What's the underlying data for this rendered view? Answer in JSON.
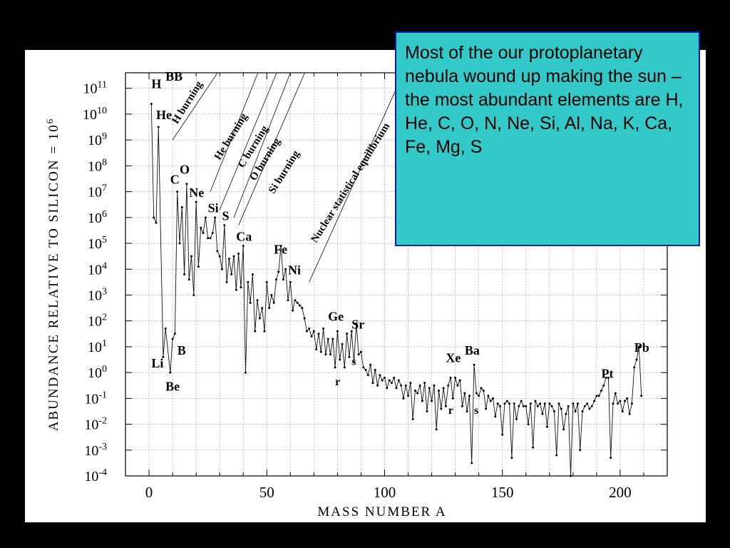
{
  "callout": {
    "text": "Most of the our protoplanetary nebula wound up making the sun – the most abundant elements are H, He, C, O, N, Ne, Si, Al, Na, K, Ca, Fe, Mg, S"
  },
  "chart_data": {
    "type": "line",
    "title": "",
    "xlabel": "MASS NUMBER A",
    "ylabel": "ABUNDANCE RELATIVE TO SILICON = 10^6",
    "xlim": [
      -10,
      220
    ],
    "ylim_log10": [
      -4,
      11.6
    ],
    "yscale": "log",
    "grid": true,
    "x_ticks": [
      "0",
      "50",
      "100",
      "150",
      "200"
    ],
    "y_ticks_exp": [
      "11",
      "10",
      "9",
      "8",
      "7",
      "6",
      "5",
      "4",
      "3",
      "2",
      "1",
      "0",
      "-1",
      "-2",
      "-3",
      "-4"
    ],
    "series": [
      {
        "values_log10_by_mass": [
          [
            1,
            10.4
          ],
          [
            2,
            6.0
          ],
          [
            3,
            5.8
          ],
          [
            4,
            9.5
          ],
          [
            6,
            0.6
          ],
          [
            7,
            1.7
          ],
          [
            9,
            0.0
          ],
          [
            10,
            1.3
          ],
          [
            11,
            1.5
          ],
          [
            12,
            7.0
          ],
          [
            13,
            5.0
          ],
          [
            14,
            6.4
          ],
          [
            15,
            3.8
          ],
          [
            16,
            7.3
          ],
          [
            17,
            3.6
          ],
          [
            18,
            4.5
          ],
          [
            19,
            3.0
          ],
          [
            20,
            6.6
          ],
          [
            21,
            4.1
          ],
          [
            22,
            5.6
          ],
          [
            23,
            5.4
          ],
          [
            24,
            6.0
          ],
          [
            25,
            5.2
          ],
          [
            26,
            5.2
          ],
          [
            27,
            5.4
          ],
          [
            28,
            6.0
          ],
          [
            29,
            4.7
          ],
          [
            30,
            4.5
          ],
          [
            31,
            4.0
          ],
          [
            32,
            5.7
          ],
          [
            33,
            3.5
          ],
          [
            34,
            4.4
          ],
          [
            35,
            3.8
          ],
          [
            36,
            4.5
          ],
          [
            37,
            3.2
          ],
          [
            38,
            4.6
          ],
          [
            39,
            3.3
          ],
          [
            40,
            4.9
          ],
          [
            41,
            0.0
          ],
          [
            42,
            3.5
          ],
          [
            43,
            2.7
          ],
          [
            44,
            3.8
          ],
          [
            45,
            1.6
          ],
          [
            46,
            2.8
          ],
          [
            47,
            2.1
          ],
          [
            48,
            2.5
          ],
          [
            49,
            1.6
          ],
          [
            50,
            3.5
          ],
          [
            51,
            2.5
          ],
          [
            52,
            3.0
          ],
          [
            53,
            2.7
          ],
          [
            54,
            3.6
          ],
          [
            55,
            3.9
          ],
          [
            56,
            4.9
          ],
          [
            57,
            3.6
          ],
          [
            58,
            4.0
          ],
          [
            59,
            2.8
          ],
          [
            60,
            3.5
          ],
          [
            61,
            2.4
          ],
          [
            62,
            2.8
          ],
          [
            63,
            2.7
          ],
          [
            64,
            2.6
          ],
          [
            65,
            2.5
          ],
          [
            66,
            2.1
          ],
          [
            67,
            1.6
          ],
          [
            68,
            1.7
          ],
          [
            69,
            1.4
          ],
          [
            70,
            1.6
          ],
          [
            71,
            0.9
          ],
          [
            72,
            1.5
          ],
          [
            73,
            0.8
          ],
          [
            74,
            1.7
          ],
          [
            75,
            0.7
          ],
          [
            76,
            1.3
          ],
          [
            77,
            0.7
          ],
          [
            78,
            1.3
          ],
          [
            79,
            0.2
          ],
          [
            80,
            1.6
          ],
          [
            81,
            0.5
          ],
          [
            82,
            1.1
          ],
          [
            83,
            0.2
          ],
          [
            84,
            1.5
          ],
          [
            85,
            0.6
          ],
          [
            86,
            1.6
          ],
          [
            87,
            0.4
          ],
          [
            88,
            1.9
          ],
          [
            89,
            0.7
          ],
          [
            90,
            0.8
          ],
          [
            91,
            0.2
          ],
          [
            92,
            0.1
          ],
          [
            93,
            -0.1
          ],
          [
            94,
            0.3
          ],
          [
            95,
            -0.4
          ],
          [
            96,
            0.1
          ],
          [
            97,
            -0.5
          ],
          [
            98,
            -0.1
          ],
          [
            99,
            -0.3
          ],
          [
            100,
            -0.2
          ],
          [
            101,
            -0.6
          ],
          [
            102,
            -0.3
          ],
          [
            103,
            -0.4
          ],
          [
            104,
            -0.2
          ],
          [
            105,
            -0.6
          ],
          [
            106,
            -0.3
          ],
          [
            107,
            -0.5
          ],
          [
            108,
            -1.0
          ],
          [
            109,
            -0.5
          ],
          [
            110,
            -0.9
          ],
          [
            111,
            -0.4
          ],
          [
            112,
            -1.8
          ],
          [
            113,
            -0.7
          ],
          [
            114,
            -0.8
          ],
          [
            115,
            -0.5
          ],
          [
            116,
            -1.1
          ],
          [
            117,
            -0.4
          ],
          [
            118,
            -1.5
          ],
          [
            119,
            -0.6
          ],
          [
            120,
            -1.1
          ],
          [
            121,
            -0.5
          ],
          [
            122,
            -2.2
          ],
          [
            123,
            -0.7
          ],
          [
            124,
            -1.4
          ],
          [
            125,
            -0.6
          ],
          [
            126,
            -1.3
          ],
          [
            127,
            -0.5
          ],
          [
            128,
            -0.2
          ],
          [
            129,
            -1.0
          ],
          [
            130,
            -0.2
          ],
          [
            131,
            -0.5
          ],
          [
            132,
            -0.3
          ],
          [
            133,
            -1.3
          ],
          [
            134,
            -0.8
          ],
          [
            135,
            -1.5
          ],
          [
            136,
            -0.9
          ],
          [
            137,
            -3.5
          ],
          [
            138,
            0.3
          ],
          [
            139,
            -0.8
          ],
          [
            140,
            -0.9
          ],
          [
            141,
            -0.6
          ],
          [
            142,
            -0.7
          ],
          [
            143,
            -1.4
          ],
          [
            144,
            -0.9
          ],
          [
            145,
            -1.1
          ],
          [
            146,
            -1.0
          ],
          [
            147,
            -1.7
          ],
          [
            148,
            -1.2
          ],
          [
            149,
            -1.3
          ],
          [
            150,
            -2.4
          ],
          [
            151,
            -1.2
          ],
          [
            152,
            -1.1
          ],
          [
            153,
            -1.2
          ],
          [
            154,
            -3.3
          ],
          [
            155,
            -1.2
          ],
          [
            156,
            -1.8
          ],
          [
            157,
            -1.3
          ],
          [
            158,
            -1.1
          ],
          [
            159,
            -1.3
          ],
          [
            160,
            -1.3
          ],
          [
            161,
            -2.0
          ],
          [
            162,
            -1.2
          ],
          [
            163,
            -2.9
          ],
          [
            164,
            -1.1
          ],
          [
            165,
            -1.3
          ],
          [
            166,
            -1.2
          ],
          [
            167,
            -1.6
          ],
          [
            168,
            -1.2
          ],
          [
            169,
            -2.1
          ],
          [
            170,
            -1.2
          ],
          [
            171,
            -1.3
          ],
          [
            172,
            -1.5
          ],
          [
            173,
            -3.2
          ],
          [
            174,
            -1.2
          ],
          [
            175,
            -1.4
          ],
          [
            176,
            -2.2
          ],
          [
            177,
            -1.6
          ],
          [
            178,
            -1.3
          ],
          [
            179,
            -4.0
          ],
          [
            180,
            -1.2
          ],
          [
            181,
            -1.5
          ],
          [
            182,
            -1.2
          ],
          [
            183,
            -3.0
          ],
          [
            184,
            -1.5
          ],
          [
            185,
            -1.3
          ],
          [
            186,
            -1.2
          ],
          [
            187,
            -1.4
          ],
          [
            188,
            -1.3
          ],
          [
            189,
            -1.1
          ],
          [
            190,
            -0.9
          ],
          [
            191,
            -0.9
          ],
          [
            192,
            -0.7
          ],
          [
            193,
            -0.5
          ],
          [
            194,
            -0.2
          ],
          [
            195,
            -0.2
          ],
          [
            196,
            -3.3
          ],
          [
            197,
            -1.2
          ],
          [
            198,
            -0.8
          ],
          [
            199,
            -1.2
          ],
          [
            200,
            -1.1
          ],
          [
            201,
            -1.5
          ],
          [
            202,
            -1.1
          ],
          [
            203,
            -1.0
          ],
          [
            204,
            -1.6
          ],
          [
            205,
            -1.2
          ],
          [
            206,
            0.2
          ],
          [
            207,
            0.5
          ],
          [
            208,
            1.0
          ],
          [
            209,
            -0.9
          ]
        ]
      }
    ],
    "element_labels": [
      {
        "text": "H",
        "mass": 1,
        "log10": 11.0
      },
      {
        "text": "BB",
        "mass": 7,
        "log10": 11.3
      },
      {
        "text": "He",
        "mass": 3,
        "log10": 9.8
      },
      {
        "text": "Li",
        "mass": 1,
        "log10": 0.2
      },
      {
        "text": "B",
        "mass": 12,
        "log10": 0.7
      },
      {
        "text": "Be",
        "mass": 7,
        "log10": -0.7
      },
      {
        "text": "C",
        "mass": 9,
        "log10": 7.3
      },
      {
        "text": "O",
        "mass": 13,
        "log10": 7.7
      },
      {
        "text": "Ne",
        "mass": 17,
        "log10": 6.8
      },
      {
        "text": "Si",
        "mass": 25,
        "log10": 6.2
      },
      {
        "text": "S",
        "mass": 31,
        "log10": 5.9
      },
      {
        "text": "Ca",
        "mass": 37,
        "log10": 5.1
      },
      {
        "text": "Fe",
        "mass": 53,
        "log10": 4.6
      },
      {
        "text": "Ni",
        "mass": 59,
        "log10": 3.8
      },
      {
        "text": "Ge",
        "mass": 76,
        "log10": 2.0
      },
      {
        "text": "Sr",
        "mass": 86,
        "log10": 1.7
      },
      {
        "text": "r",
        "mass": 79,
        "log10": -0.5
      },
      {
        "text": "s",
        "mass": 86,
        "log10": 0.3
      },
      {
        "text": "Xe",
        "mass": 126,
        "log10": 0.4
      },
      {
        "text": "Ba",
        "mass": 134,
        "log10": 0.7
      },
      {
        "text": "r",
        "mass": 127,
        "log10": -1.6
      },
      {
        "text": "s",
        "mass": 138,
        "log10": -1.6
      },
      {
        "text": "Pt",
        "mass": 192,
        "log10": -0.2
      },
      {
        "text": "Pb",
        "mass": 206,
        "log10": 0.8
      }
    ],
    "process_labels": [
      {
        "text": "H burning",
        "mass": 12,
        "log10": 9.6
      },
      {
        "text": "He burning",
        "mass": 30,
        "log10": 8.2
      },
      {
        "text": "C burning",
        "mass": 40,
        "log10": 7.9
      },
      {
        "text": "O burning",
        "mass": 45,
        "log10": 7.4
      },
      {
        "text": "Si burning",
        "mass": 53,
        "log10": 6.9
      },
      {
        "text": "Nuclear statistical equilibrium",
        "mass": 71,
        "log10": 5.0
      }
    ],
    "process_lines": [
      {
        "from": [
          10,
          9.0
        ],
        "to": [
          32,
          12.0
        ]
      },
      {
        "from": [
          26,
          7.0
        ],
        "to": [
          48,
          12.0
        ]
      },
      {
        "from": [
          30,
          6.3
        ],
        "to": [
          56,
          12.0
        ]
      },
      {
        "from": [
          36,
          6.0
        ],
        "to": [
          60,
          11.6
        ]
      },
      {
        "from": [
          38,
          5.7
        ],
        "to": [
          68,
          12.0
        ]
      },
      {
        "from": [
          68,
          3.5
        ],
        "to": [
          110,
          12.0
        ]
      }
    ]
  }
}
